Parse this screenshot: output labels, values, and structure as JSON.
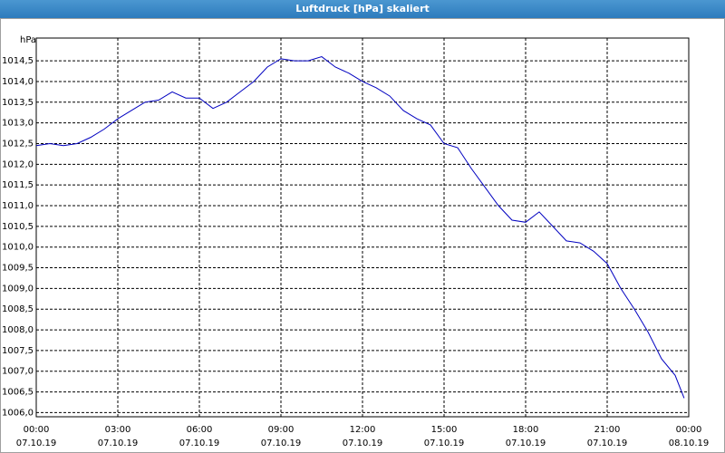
{
  "chart_data": {
    "type": "line",
    "title": "Luftdruck [hPa] skaliert",
    "y_label": "hPa",
    "x": [
      0,
      0.5,
      1,
      1.5,
      2,
      2.5,
      3,
      3.5,
      4,
      4.5,
      5,
      5.5,
      6,
      6.5,
      7,
      7.5,
      8,
      8.5,
      9,
      9.5,
      10,
      10.5,
      11,
      11.5,
      12,
      12.5,
      13,
      13.5,
      14,
      14.5,
      15,
      15.5,
      16,
      16.5,
      17,
      17.5,
      18,
      18.5,
      19,
      19.5,
      20,
      20.5,
      21,
      21.5,
      22,
      22.5,
      23,
      23.5,
      23.83
    ],
    "series": [
      {
        "name": "Luftdruck",
        "color": "#0000c0",
        "values": [
          1012.45,
          1012.5,
          1012.45,
          1012.5,
          1012.65,
          1012.85,
          1013.1,
          1013.3,
          1013.5,
          1013.55,
          1013.75,
          1013.6,
          1013.6,
          1013.35,
          1013.5,
          1013.75,
          1014.0,
          1014.35,
          1014.55,
          1014.5,
          1014.5,
          1014.6,
          1014.35,
          1014.2,
          1014.0,
          1013.85,
          1013.65,
          1013.3,
          1013.1,
          1012.95,
          1012.5,
          1012.4,
          1011.9,
          1011.45,
          1011.0,
          1010.65,
          1010.6,
          1010.85,
          1010.5,
          1010.15,
          1010.1,
          1009.9,
          1009.6,
          1009.0,
          1008.5,
          1007.95,
          1007.3,
          1006.9,
          1006.35
        ]
      }
    ],
    "xlim": [
      0,
      24
    ],
    "xticks": [
      {
        "value": 0,
        "label": "00:00"
      },
      {
        "value": 3,
        "label": "03:00"
      },
      {
        "value": 6,
        "label": "06:00"
      },
      {
        "value": 9,
        "label": "09:00"
      },
      {
        "value": 12,
        "label": "12:00"
      },
      {
        "value": 15,
        "label": "15:00"
      },
      {
        "value": 18,
        "label": "18:00"
      },
      {
        "value": 21,
        "label": "21:00"
      },
      {
        "value": 24,
        "label": "00:00"
      }
    ],
    "xtick_dates": [
      "07.10.19",
      "07.10.19",
      "07.10.19",
      "07.10.19",
      "07.10.19",
      "07.10.19",
      "07.10.19",
      "07.10.19",
      "08.10.19"
    ],
    "ylim": [
      1005.9,
      1015.05
    ],
    "yticks": [
      {
        "value": 1006,
        "label": "1006,0"
      },
      {
        "value": 1006.5,
        "label": "1006,5"
      },
      {
        "value": 1007,
        "label": "1007,0"
      },
      {
        "value": 1007.5,
        "label": "1007,5"
      },
      {
        "value": 1008,
        "label": "1008,0"
      },
      {
        "value": 1008.5,
        "label": "1008,5"
      },
      {
        "value": 1009,
        "label": "1009,0"
      },
      {
        "value": 1009.5,
        "label": "1009,5"
      },
      {
        "value": 1010,
        "label": "1010,0"
      },
      {
        "value": 1010.5,
        "label": "1010,5"
      },
      {
        "value": 1011,
        "label": "1011,0"
      },
      {
        "value": 1011.5,
        "label": "1011,5"
      },
      {
        "value": 1012,
        "label": "1012,0"
      },
      {
        "value": 1012.5,
        "label": "1012,5"
      },
      {
        "value": 1013,
        "label": "1013,0"
      },
      {
        "value": 1013.5,
        "label": "1013,5"
      },
      {
        "value": 1014,
        "label": "1014,0"
      },
      {
        "value": 1014.5,
        "label": "1014,5"
      }
    ],
    "grid": true
  }
}
